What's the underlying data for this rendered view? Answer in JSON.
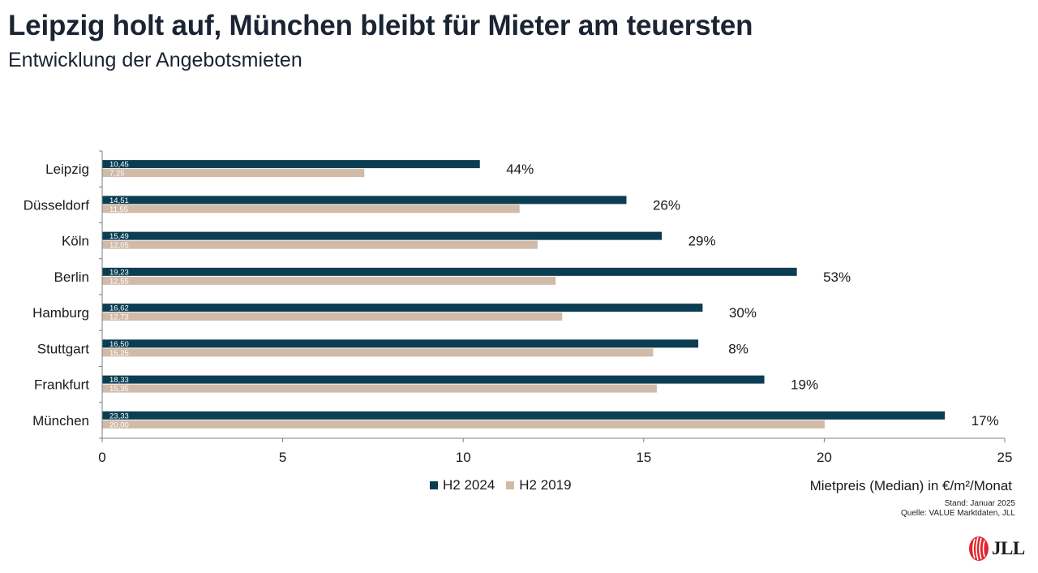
{
  "header": {
    "title": "Leipzig holt auf, München bleibt für Mieter am teuersten",
    "subtitle": "Entwicklung der Angebotsmieten"
  },
  "colors": {
    "h2_2024": "#0b3e52",
    "h2_2019": "#d1baa8",
    "text": "#1a1a1a"
  },
  "chart_data": {
    "type": "bar",
    "orientation": "horizontal",
    "categories": [
      "Leipzig",
      "Düsseldorf",
      "Köln",
      "Berlin",
      "Hamburg",
      "Stuttgart",
      "Frankfurt",
      "München"
    ],
    "series": [
      {
        "name": "H2 2024",
        "values": [
          10.45,
          14.51,
          15.49,
          19.23,
          16.62,
          16.5,
          18.33,
          23.33
        ],
        "value_labels": [
          "10,45",
          "14,51",
          "15,49",
          "19,23",
          "16,62",
          "16,50",
          "18,33",
          "23,33"
        ]
      },
      {
        "name": "H2 2019",
        "values": [
          7.25,
          11.55,
          12.05,
          12.55,
          12.73,
          15.25,
          15.35,
          20.0
        ],
        "value_labels": [
          "7,25",
          "11,55",
          "12,05",
          "12,55",
          "12,73",
          "15,25",
          "15,35",
          "20,00"
        ]
      }
    ],
    "change_labels": [
      "44%",
      "26%",
      "29%",
      "53%",
      "30%",
      "8%",
      "19%",
      "17%"
    ],
    "xlim": [
      0,
      25
    ],
    "xticks": [
      0,
      5,
      10,
      15,
      20,
      25
    ],
    "xlabel": "Mietpreis (Median) in €/m²/Monat",
    "legend": "bottom"
  },
  "footer": {
    "stand": "Stand: Januar 2025",
    "source": "Quelle: VALUE Marktdaten, JLL",
    "logo_text": "JLL"
  }
}
